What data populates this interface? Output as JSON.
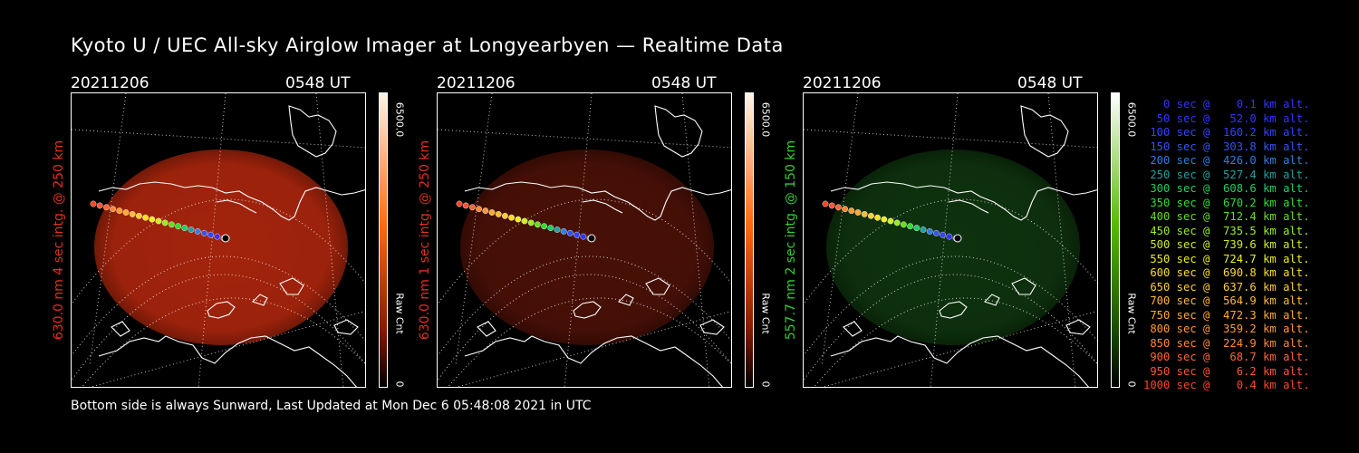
{
  "title": "Kyoto U / UEC All-sky Airglow Imager at Longyearbyen — Realtime Data",
  "footer": "Bottom side is always Sunward, Last Updated at Mon Dec  6 05:48:08 2021 in UTC",
  "panels": [
    {
      "date": "20211206",
      "time": "0548 UT",
      "ylabel": "630.0 nm 4 sec intg. @ 250 km",
      "label_color": "#e0301e",
      "cbar_max": "6500.0",
      "cbar_label": "Raw Cnt",
      "cbar_min": "0",
      "image_color": "#c02a0e",
      "image_opacity": 0.85
    },
    {
      "date": "20211206",
      "time": "0548 UT",
      "ylabel": "630.0 nm 1 sec intg. @ 250 km",
      "label_color": "#e0301e",
      "cbar_max": "6500.0",
      "cbar_label": "Raw Cnt",
      "cbar_min": "0",
      "image_color": "#5a1408",
      "image_opacity": 0.8
    },
    {
      "date": "20211206",
      "time": "0548 UT",
      "ylabel": "557.7 nm 2 sec intg. @ 150 km",
      "label_color": "#33cc33",
      "cbar_max": "6500.0",
      "cbar_label": "Raw Cnt",
      "cbar_min": "0",
      "image_color": "#103a10",
      "image_opacity": 0.85
    }
  ],
  "colors": {
    "red_scale_top": "#fff4e6",
    "red_scale_mid": "#ff6a10",
    "green_scale_top": "#ffffff",
    "green_scale_mid": "#55bb00"
  },
  "legend": [
    {
      "text": "   0 sec @    0.1 km alt.",
      "color": "#3333ff"
    },
    {
      "text": "  50 sec @   52.0 km alt.",
      "color": "#3333ff"
    },
    {
      "text": " 100 sec @  160.2 km alt.",
      "color": "#3344ff"
    },
    {
      "text": " 150 sec @  303.8 km alt.",
      "color": "#3355ee"
    },
    {
      "text": " 200 sec @  426.0 km alt.",
      "color": "#2f7fe0"
    },
    {
      "text": " 250 sec @  527.4 km alt.",
      "color": "#20a0a0"
    },
    {
      "text": " 300 sec @  608.6 km alt.",
      "color": "#22cc66"
    },
    {
      "text": " 350 sec @  670.2 km alt.",
      "color": "#33dd33"
    },
    {
      "text": " 400 sec @  712.4 km alt.",
      "color": "#66dd22"
    },
    {
      "text": " 450 sec @  735.5 km alt.",
      "color": "#99ee22"
    },
    {
      "text": " 500 sec @  739.6 km alt.",
      "color": "#ccee22"
    },
    {
      "text": " 550 sec @  724.7 km alt.",
      "color": "#eeee22"
    },
    {
      "text": " 600 sec @  690.8 km alt.",
      "color": "#ffdd22"
    },
    {
      "text": " 650 sec @  637.6 km alt.",
      "color": "#ffcc33"
    },
    {
      "text": " 700 sec @  564.9 km alt.",
      "color": "#ffbb33"
    },
    {
      "text": " 750 sec @  472.3 km alt.",
      "color": "#ffaa33"
    },
    {
      "text": " 800 sec @  359.2 km alt.",
      "color": "#ff9933"
    },
    {
      "text": " 850 sec @  224.9 km alt.",
      "color": "#ff8833"
    },
    {
      "text": " 900 sec @   68.7 km alt.",
      "color": "#ff6633"
    },
    {
      "text": " 950 sec @    6.2 km alt.",
      "color": "#ff5533"
    },
    {
      "text": "1000 sec @    0.4 km alt.",
      "color": "#ff4422"
    }
  ]
}
